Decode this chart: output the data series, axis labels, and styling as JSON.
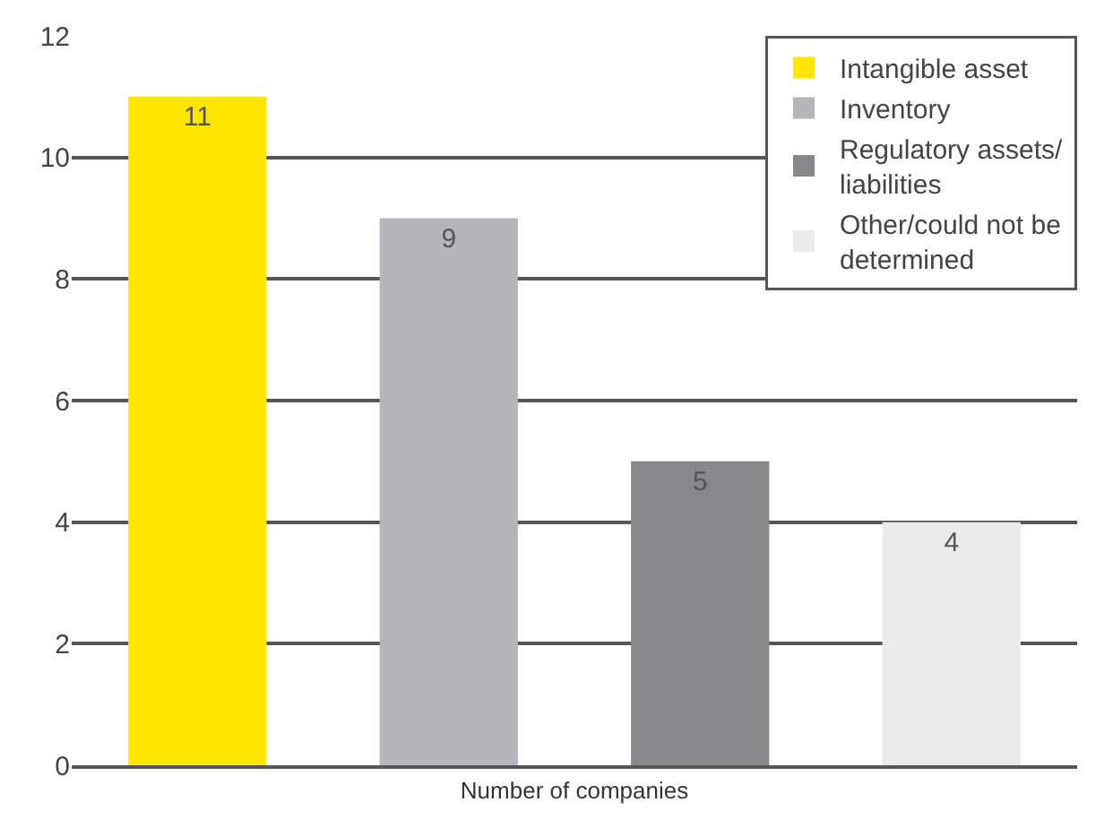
{
  "chart_data": {
    "type": "bar",
    "xlabel": "Number of companies",
    "categories": [
      null,
      null,
      null,
      null
    ],
    "series": [
      {
        "name": "Intangible asset",
        "color": "#ffe600",
        "values": [
          11,
          null,
          null,
          null
        ]
      },
      {
        "name": "Inventory",
        "color": "#b6b6ba",
        "values": [
          null,
          9,
          null,
          null
        ]
      },
      {
        "name": "Regulatory assets/liabilities",
        "color": "#88888b",
        "values": [
          null,
          null,
          5,
          null
        ]
      },
      {
        "name": "Other/could not be determined",
        "color": "#ebebeb",
        "values": [
          null,
          null,
          null,
          4
        ]
      }
    ],
    "ylim": [
      0,
      12
    ],
    "yticks": [
      0,
      2,
      4,
      6,
      8,
      10,
      12
    ],
    "grid": "y",
    "legend": "top right",
    "data_labels": true
  }
}
